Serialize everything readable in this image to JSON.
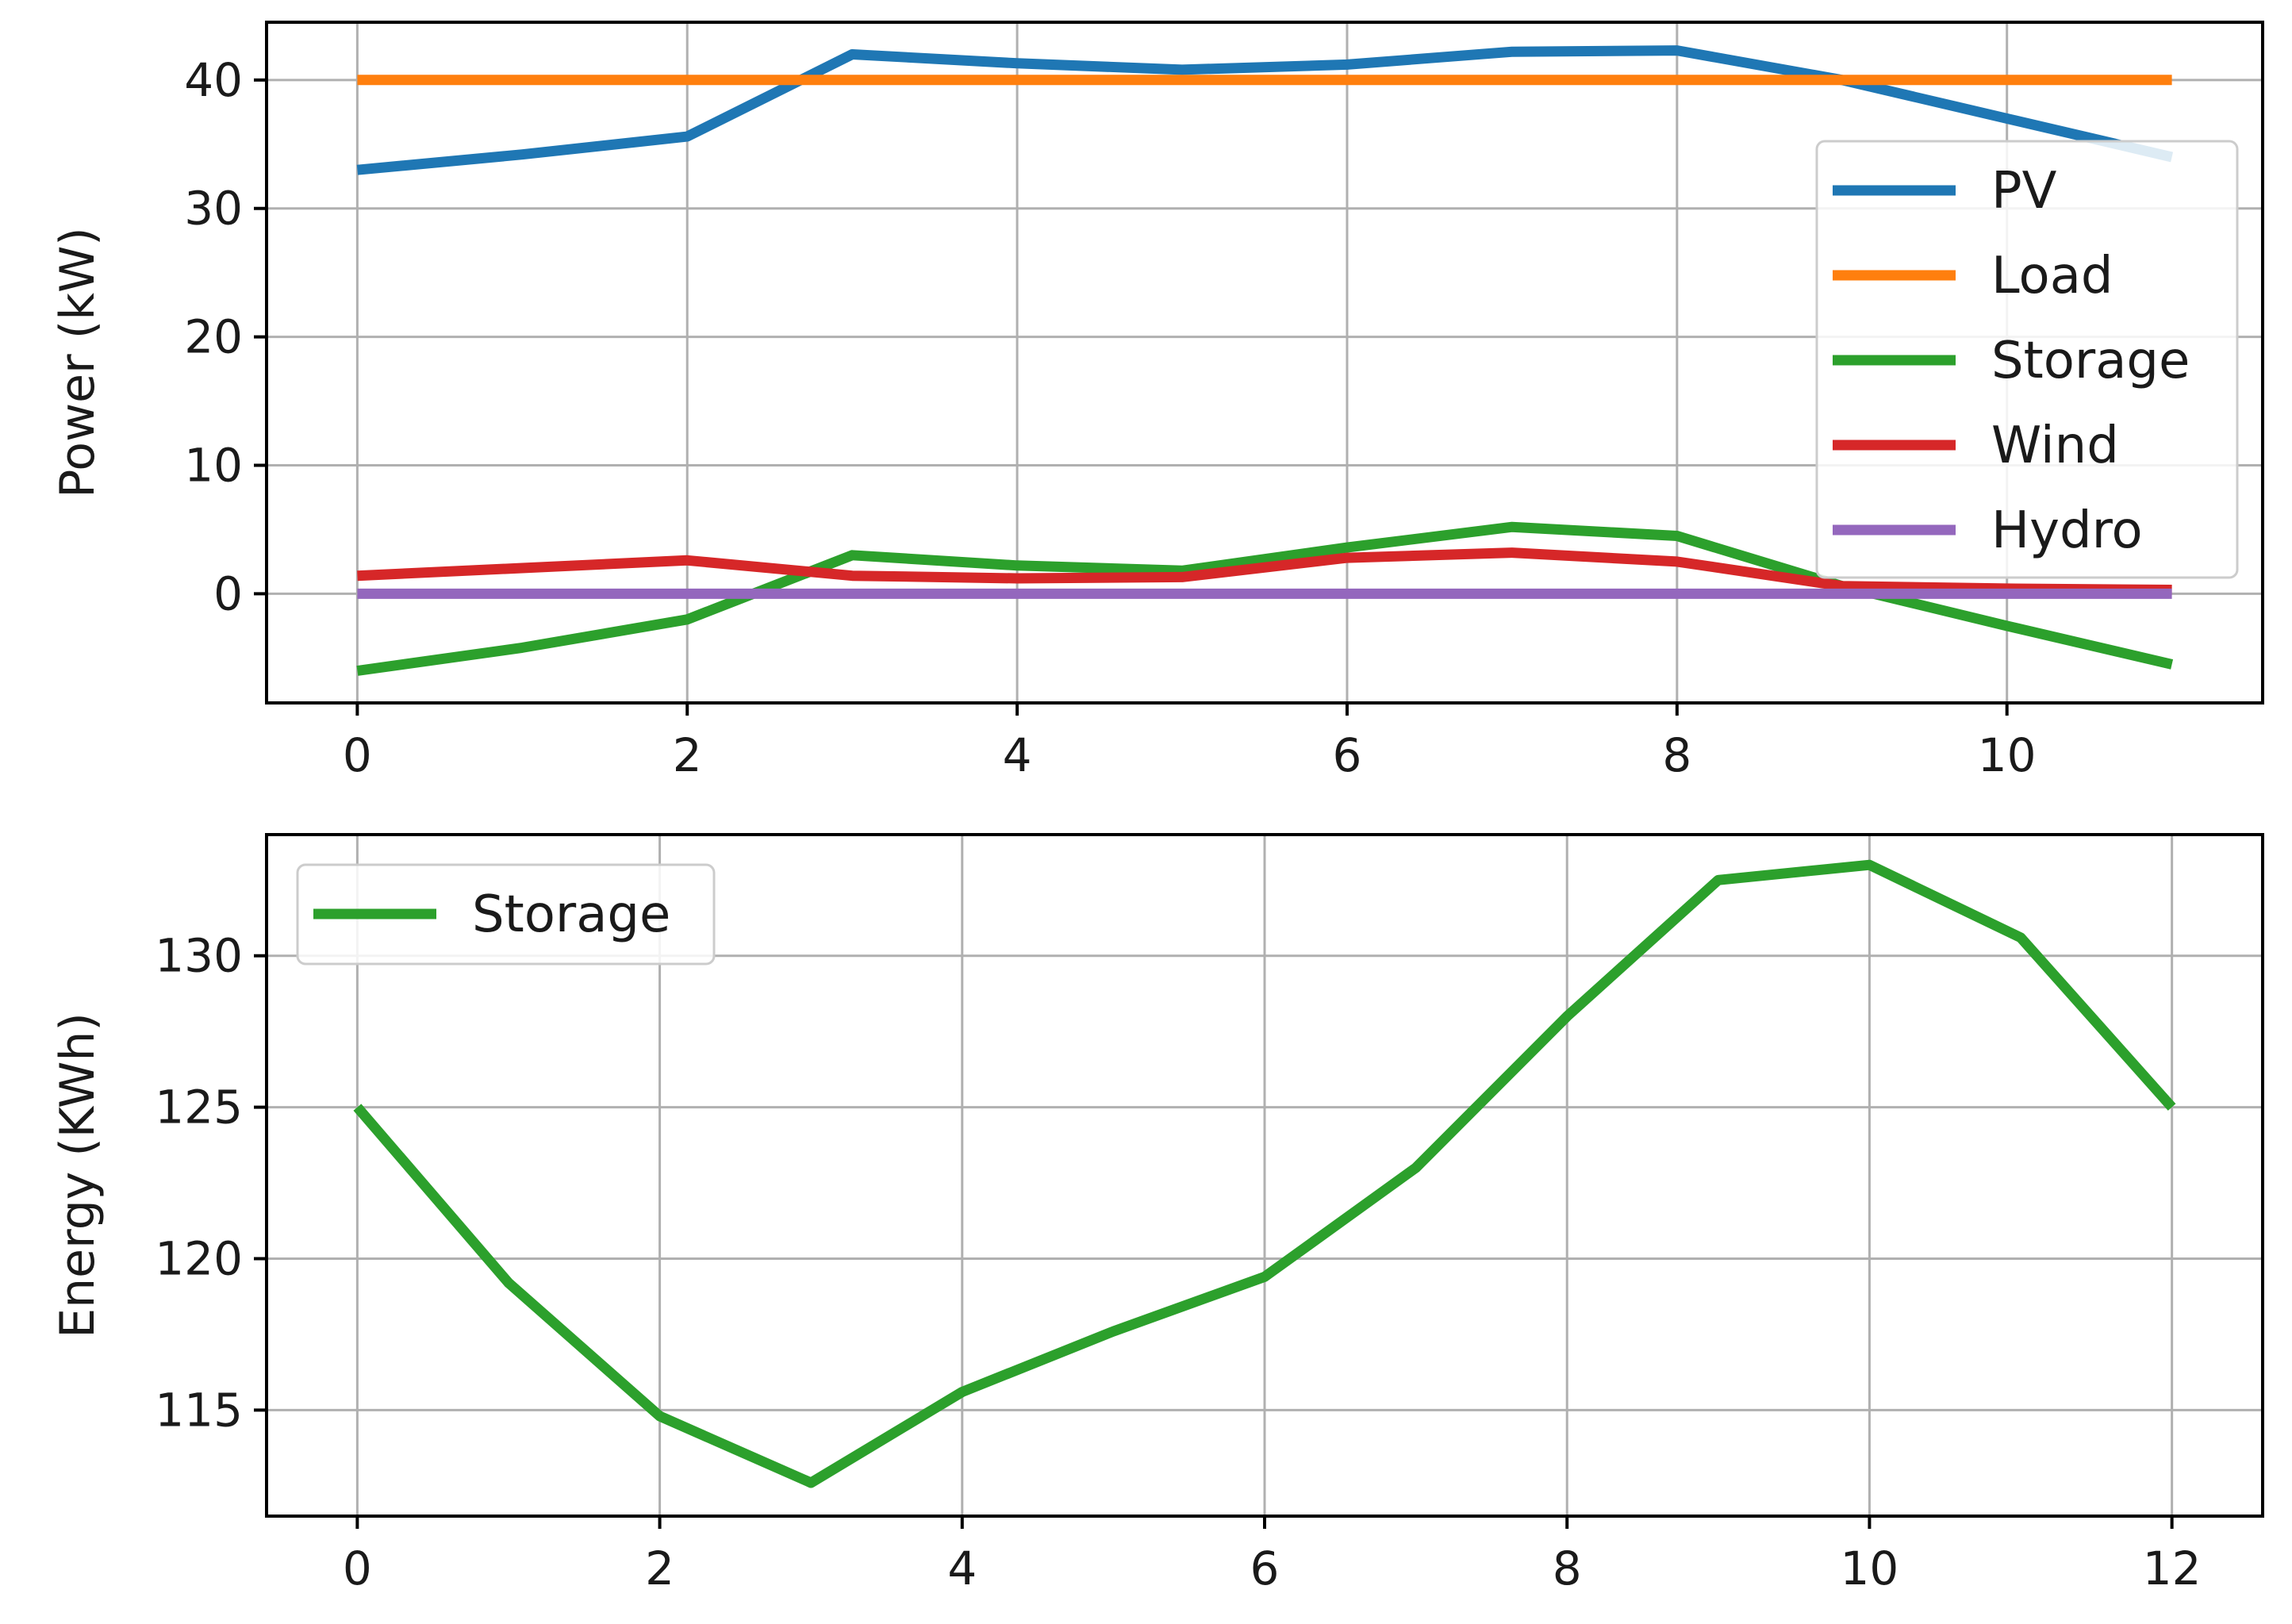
{
  "colors": {
    "PV": "#1f77b4",
    "Load": "#ff7f0e",
    "Storage": "#2ca02c",
    "Wind": "#d62728",
    "Hydro": "#9467bd",
    "grid": "#b0b0b0",
    "axes": "#000000"
  },
  "chart_data": [
    {
      "type": "line",
      "title": "",
      "xlabel": "",
      "ylabel": "Power (kW)",
      "xlim": [
        -0.55,
        11.55
      ],
      "ylim": [
        -8.5,
        44.5
      ],
      "xticks": [
        0,
        2,
        4,
        6,
        8,
        10
      ],
      "yticks": [
        0,
        10,
        20,
        30,
        40
      ],
      "grid": true,
      "legend_position": "right",
      "x": [
        0,
        1,
        2,
        3,
        4,
        5,
        6,
        7,
        8,
        9,
        10,
        11
      ],
      "series": [
        {
          "name": "PV",
          "values": [
            33.0,
            34.2,
            35.6,
            42.0,
            41.3,
            40.8,
            41.2,
            42.2,
            42.3,
            40.0,
            37.0,
            34.0
          ]
        },
        {
          "name": "Load",
          "values": [
            40,
            40,
            40,
            40,
            40,
            40,
            40,
            40,
            40,
            40,
            40,
            40
          ]
        },
        {
          "name": "Storage",
          "values": [
            -6.0,
            -4.2,
            -2.0,
            3.0,
            2.2,
            1.8,
            3.6,
            5.2,
            4.5,
            0.6,
            -2.5,
            -5.5
          ]
        },
        {
          "name": "Wind",
          "values": [
            1.4,
            2.0,
            2.6,
            1.4,
            1.2,
            1.3,
            2.8,
            3.2,
            2.5,
            0.6,
            0.4,
            0.3
          ]
        },
        {
          "name": "Hydro",
          "values": [
            0,
            0,
            0,
            0,
            0,
            0,
            0,
            0,
            0,
            0,
            0,
            0
          ]
        }
      ]
    },
    {
      "type": "line",
      "title": "",
      "xlabel": "",
      "ylabel": "Energy (KWh)",
      "xlim": [
        -0.6,
        12.6
      ],
      "ylim": [
        111.5,
        134.0
      ],
      "xticks": [
        0,
        2,
        4,
        6,
        8,
        10,
        12
      ],
      "yticks": [
        115,
        120,
        125,
        130
      ],
      "grid": true,
      "legend_position": "top-left",
      "x": [
        0,
        1,
        2,
        3,
        4,
        5,
        6,
        7,
        8,
        9,
        10,
        11,
        12
      ],
      "series": [
        {
          "name": "Storage",
          "values": [
            125.0,
            119.2,
            114.8,
            112.6,
            115.6,
            117.6,
            119.4,
            123.0,
            128.0,
            132.5,
            133.0,
            130.6,
            125.0
          ]
        }
      ]
    }
  ]
}
